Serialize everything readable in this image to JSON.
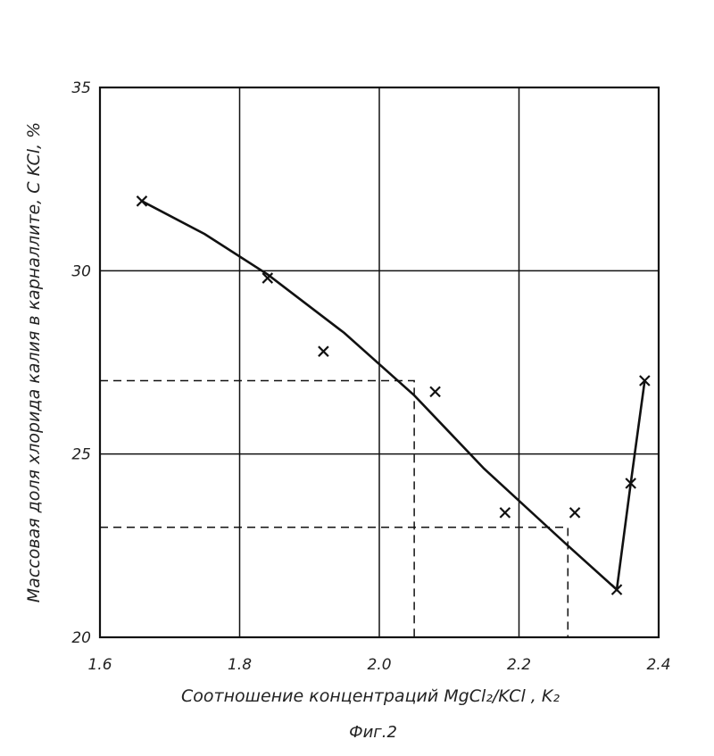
{
  "chart_data": {
    "type": "line",
    "xlabel": "Соотношение концентраций MgCl₂/KCl , K₂",
    "ylabel": "Массовая доля хлорида калия в карналлите, C KCl, %",
    "caption": "Фиг.2",
    "xlim": [
      1.6,
      2.4
    ],
    "ylim": [
      20,
      35
    ],
    "x_ticks": [
      "1.6",
      "1.8",
      "2.0",
      "2.2",
      "2.4"
    ],
    "y_ticks": [
      "20",
      "25",
      "30",
      "35"
    ],
    "grid": true,
    "series": [
      {
        "points": [
          {
            "x": 1.66,
            "y": 31.9
          },
          {
            "x": 1.84,
            "y": 29.8
          },
          {
            "x": 1.92,
            "y": 27.8
          },
          {
            "x": 2.08,
            "y": 26.7
          },
          {
            "x": 2.18,
            "y": 23.4
          },
          {
            "x": 2.28,
            "y": 23.4
          },
          {
            "x": 2.34,
            "y": 21.3
          },
          {
            "x": 2.36,
            "y": 24.2
          },
          {
            "x": 2.38,
            "y": 27.0
          }
        ],
        "curve": [
          {
            "x": 1.66,
            "y": 31.9
          },
          {
            "x": 1.75,
            "y": 31.0
          },
          {
            "x": 1.84,
            "y": 29.9
          },
          {
            "x": 1.95,
            "y": 28.3
          },
          {
            "x": 2.05,
            "y": 26.6
          },
          {
            "x": 2.15,
            "y": 24.6
          },
          {
            "x": 2.27,
            "y": 22.5
          },
          {
            "x": 2.34,
            "y": 21.3
          },
          {
            "x": 2.36,
            "y": 24.2
          },
          {
            "x": 2.38,
            "y": 27.0
          }
        ]
      }
    ],
    "reference_lines": [
      {
        "y": 27.0,
        "x": 2.05
      },
      {
        "y": 23.0,
        "x": 2.27
      }
    ]
  }
}
